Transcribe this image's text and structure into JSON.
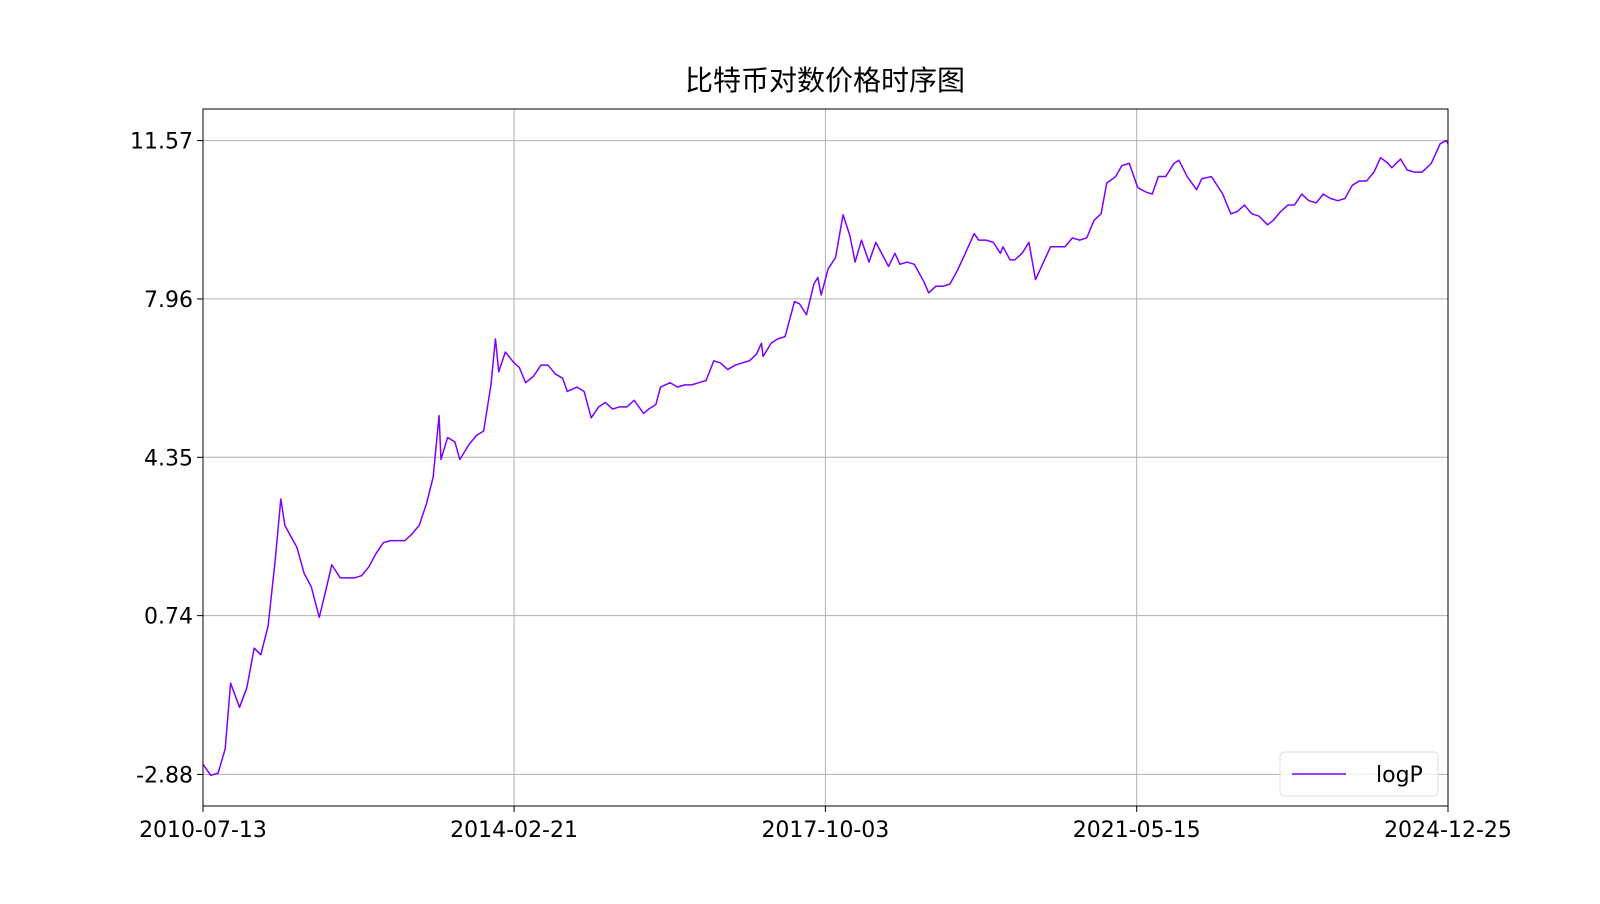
{
  "chart_data": {
    "type": "line",
    "title": "比特币对数价格时序图",
    "x": [
      "2010-07-13",
      "2010-08-15",
      "2010-09-15",
      "2010-10-15",
      "2010-11-07",
      "2010-12-15",
      "2011-01-15",
      "2011-02-15",
      "2011-03-15",
      "2011-04-15",
      "2011-05-15",
      "2011-06-08",
      "2011-06-25",
      "2011-07-15",
      "2011-08-15",
      "2011-09-15",
      "2011-10-15",
      "2011-11-18",
      "2011-12-15",
      "2012-01-10",
      "2012-02-15",
      "2012-03-15",
      "2012-04-15",
      "2012-05-15",
      "2012-06-15",
      "2012-07-15",
      "2012-08-15",
      "2012-09-15",
      "2012-10-15",
      "2012-11-15",
      "2012-12-15",
      "2013-01-15",
      "2013-02-15",
      "2013-03-15",
      "2013-04-09",
      "2013-04-17",
      "2013-05-15",
      "2013-06-15",
      "2013-07-06",
      "2013-08-15",
      "2013-09-15",
      "2013-10-15",
      "2013-11-15",
      "2013-12-04",
      "2013-12-18",
      "2014-01-15",
      "2014-02-21",
      "2014-03-15",
      "2014-04-11",
      "2014-05-15",
      "2014-06-15",
      "2014-07-15",
      "2014-08-15",
      "2014-09-15",
      "2014-10-05",
      "2014-11-15",
      "2014-12-15",
      "2015-01-14",
      "2015-02-15",
      "2015-03-15",
      "2015-04-15",
      "2015-05-15",
      "2015-06-15",
      "2015-07-15",
      "2015-08-24",
      "2015-09-15",
      "2015-10-15",
      "2015-11-04",
      "2015-12-15",
      "2016-01-15",
      "2016-02-15",
      "2016-03-15",
      "2016-04-15",
      "2016-05-15",
      "2016-06-17",
      "2016-07-15",
      "2016-08-15",
      "2016-09-15",
      "2016-10-15",
      "2016-11-15",
      "2016-12-15",
      "2017-01-05",
      "2017-01-12",
      "2017-02-15",
      "2017-03-15",
      "2017-04-15",
      "2017-05-25",
      "2017-06-15",
      "2017-07-15",
      "2017-08-15",
      "2017-09-01",
      "2017-09-15",
      "2017-10-15",
      "2017-11-15",
      "2017-12-17",
      "2018-01-15",
      "2018-02-06",
      "2018-03-05",
      "2018-04-06",
      "2018-05-05",
      "2018-06-28",
      "2018-07-25",
      "2018-08-15",
      "2018-09-15",
      "2018-10-15",
      "2018-11-25",
      "2018-12-15",
      "2019-01-15",
      "2019-02-15",
      "2019-03-15",
      "2019-04-15",
      "2019-05-15",
      "2019-06-26",
      "2019-07-15",
      "2019-08-15",
      "2019-09-15",
      "2019-10-15",
      "2019-10-26",
      "2019-11-25",
      "2019-12-15",
      "2020-01-15",
      "2020-02-13",
      "2020-03-12",
      "2020-04-15",
      "2020-05-15",
      "2020-06-15",
      "2020-07-15",
      "2020-08-15",
      "2020-09-15",
      "2020-10-15",
      "2020-11-15",
      "2020-12-15",
      "2021-01-08",
      "2021-02-15",
      "2021-03-13",
      "2021-04-14",
      "2021-05-19",
      "2021-06-22",
      "2021-07-20",
      "2021-08-15",
      "2021-09-15",
      "2021-10-20",
      "2021-11-10",
      "2021-12-15",
      "2022-01-24",
      "2022-02-15",
      "2022-03-28",
      "2022-04-15",
      "2022-05-15",
      "2022-06-18",
      "2022-07-15",
      "2022-08-15",
      "2022-09-15",
      "2022-10-15",
      "2022-11-21",
      "2022-12-15",
      "2023-01-15",
      "2023-02-15",
      "2023-03-15",
      "2023-04-15",
      "2023-05-15",
      "2023-06-15",
      "2023-07-15",
      "2023-08-15",
      "2023-09-15",
      "2023-10-15",
      "2023-11-15",
      "2023-12-15",
      "2024-01-15",
      "2024-02-15",
      "2024-03-14",
      "2024-04-15",
      "2024-05-01",
      "2024-06-07",
      "2024-07-05",
      "2024-08-05",
      "2024-09-06",
      "2024-10-15",
      "2024-11-22",
      "2024-12-17",
      "2024-12-25"
    ],
    "series": [
      {
        "name": "logP",
        "color": "#7f00ff",
        "values": [
          -2.65,
          -2.9,
          -2.85,
          -2.3,
          -0.8,
          -1.35,
          -0.9,
          0.0,
          -0.15,
          0.5,
          2.0,
          3.4,
          2.8,
          2.6,
          2.3,
          1.7,
          1.4,
          0.7,
          1.3,
          1.9,
          1.6,
          1.6,
          1.6,
          1.65,
          1.85,
          2.15,
          2.4,
          2.45,
          2.45,
          2.45,
          2.6,
          2.8,
          3.3,
          3.9,
          5.3,
          4.3,
          4.8,
          4.7,
          4.3,
          4.65,
          4.85,
          4.95,
          6.0,
          7.05,
          6.3,
          6.75,
          6.5,
          6.4,
          6.05,
          6.2,
          6.45,
          6.45,
          6.25,
          6.15,
          5.85,
          5.95,
          5.85,
          5.25,
          5.5,
          5.6,
          5.45,
          5.5,
          5.5,
          5.65,
          5.35,
          5.45,
          5.55,
          5.95,
          6.05,
          5.95,
          6.0,
          6.0,
          6.05,
          6.1,
          6.55,
          6.5,
          6.35,
          6.45,
          6.5,
          6.55,
          6.7,
          6.95,
          6.65,
          6.95,
          7.05,
          7.1,
          7.9,
          7.85,
          7.6,
          8.3,
          8.45,
          8.05,
          8.65,
          8.9,
          9.88,
          9.4,
          8.8,
          9.3,
          8.8,
          9.25,
          8.7,
          9.0,
          8.75,
          8.8,
          8.75,
          8.35,
          8.1,
          8.25,
          8.25,
          8.3,
          8.6,
          8.95,
          9.45,
          9.3,
          9.3,
          9.25,
          9.0,
          9.15,
          8.85,
          8.85,
          9.0,
          9.25,
          8.4,
          8.8,
          9.15,
          9.15,
          9.15,
          9.35,
          9.3,
          9.35,
          9.75,
          9.9,
          10.6,
          10.75,
          11.0,
          11.05,
          10.5,
          10.4,
          10.35,
          10.75,
          10.75,
          11.05,
          11.12,
          10.75,
          10.45,
          10.7,
          10.75,
          10.6,
          10.35,
          9.9,
          9.95,
          10.1,
          9.9,
          9.85,
          9.65,
          9.75,
          9.95,
          10.1,
          10.1,
          10.35,
          10.2,
          10.15,
          10.35,
          10.25,
          10.2,
          10.25,
          10.55,
          10.65,
          10.65,
          10.85,
          11.18,
          11.05,
          10.95,
          11.15,
          10.9,
          10.85,
          10.85,
          11.05,
          11.5,
          11.57,
          11.5
        ]
      }
    ],
    "xlim": [
      "2010-07-13",
      "2024-12-25"
    ],
    "xticks": [
      "2010-07-13",
      "2014-02-21",
      "2017-10-03",
      "2021-05-15",
      "2024-12-25"
    ],
    "ylim": [
      -3.6,
      12.29
    ],
    "yticks": [
      -2.88,
      0.74,
      4.35,
      7.96,
      11.57
    ],
    "grid": true,
    "legend": "lower right"
  }
}
